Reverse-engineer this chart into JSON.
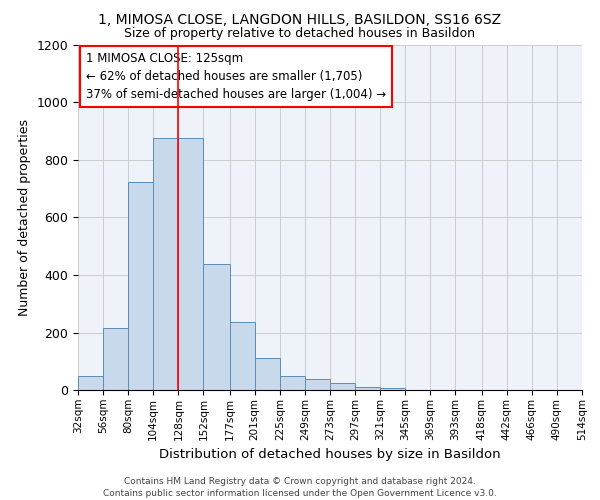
{
  "title1": "1, MIMOSA CLOSE, LANGDON HILLS, BASILDON, SS16 6SZ",
  "title2": "Size of property relative to detached houses in Basildon",
  "xlabel": "Distribution of detached houses by size in Basildon",
  "ylabel": "Number of detached properties",
  "footnote": "Contains HM Land Registry data © Crown copyright and database right 2024.\nContains public sector information licensed under the Open Government Licence v3.0.",
  "bins": [
    32,
    56,
    80,
    104,
    128,
    152,
    177,
    201,
    225,
    249,
    273,
    297,
    321,
    345,
    369,
    393,
    418,
    442,
    466,
    490,
    514
  ],
  "values": [
    50,
    215,
    725,
    875,
    875,
    440,
    235,
    110,
    47,
    37,
    25,
    12,
    8,
    0,
    0,
    0,
    0,
    0,
    0,
    0
  ],
  "bar_color": "#c9d9ec",
  "bar_edge_color": "#5b8db8",
  "grid_color": "#cccccc",
  "bg_color": "#eef2f9",
  "red_line_x": 128,
  "annotation_text": "1 MIMOSA CLOSE: 125sqm\n← 62% of detached houses are smaller (1,705)\n37% of semi-detached houses are larger (1,004) →",
  "annotation_box_color": "white",
  "annotation_border_color": "red",
  "ylim": [
    0,
    1200
  ],
  "yticks": [
    0,
    200,
    400,
    600,
    800,
    1000,
    1200
  ]
}
